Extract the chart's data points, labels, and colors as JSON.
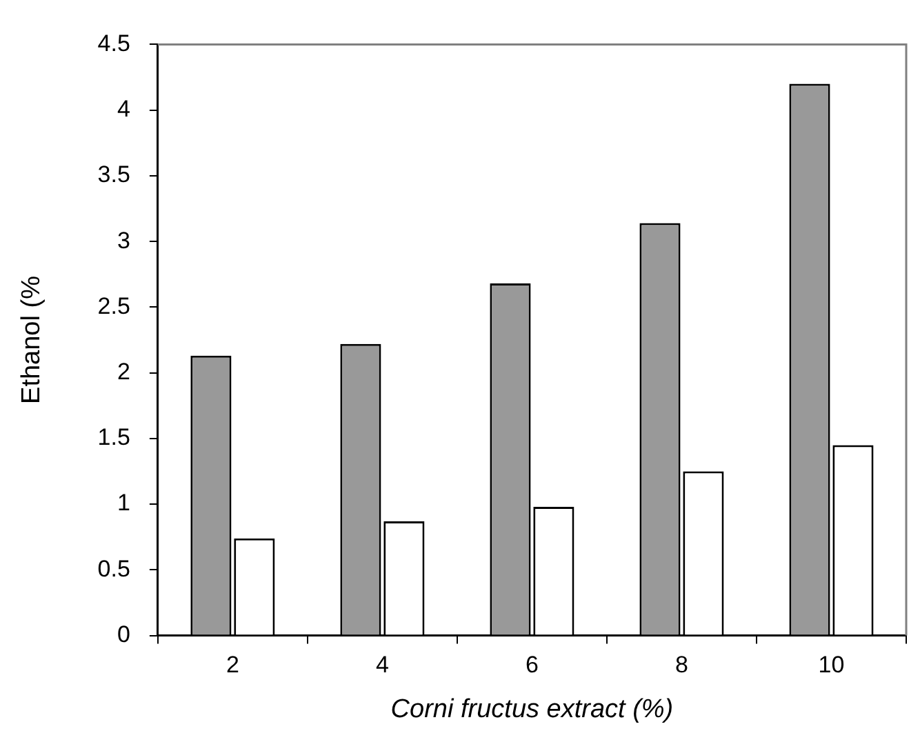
{
  "chart_data": {
    "type": "bar",
    "xlabel": "Corni fructus extract (%)",
    "ylabel": "Ethanol (%",
    "categories": [
      "2",
      "4",
      "6",
      "8",
      "10"
    ],
    "series": [
      {
        "color": "#999999",
        "values": [
          2.13,
          2.22,
          2.68,
          3.14,
          4.2
        ]
      },
      {
        "color": "#ffffff",
        "values": [
          0.74,
          0.87,
          0.98,
          1.25,
          1.45
        ]
      }
    ],
    "ylim": [
      0,
      4.5
    ],
    "yticks": [
      0,
      0.5,
      1,
      1.5,
      2,
      2.5,
      3,
      3.5,
      4,
      4.5
    ],
    "grid": false,
    "legend": false
  }
}
